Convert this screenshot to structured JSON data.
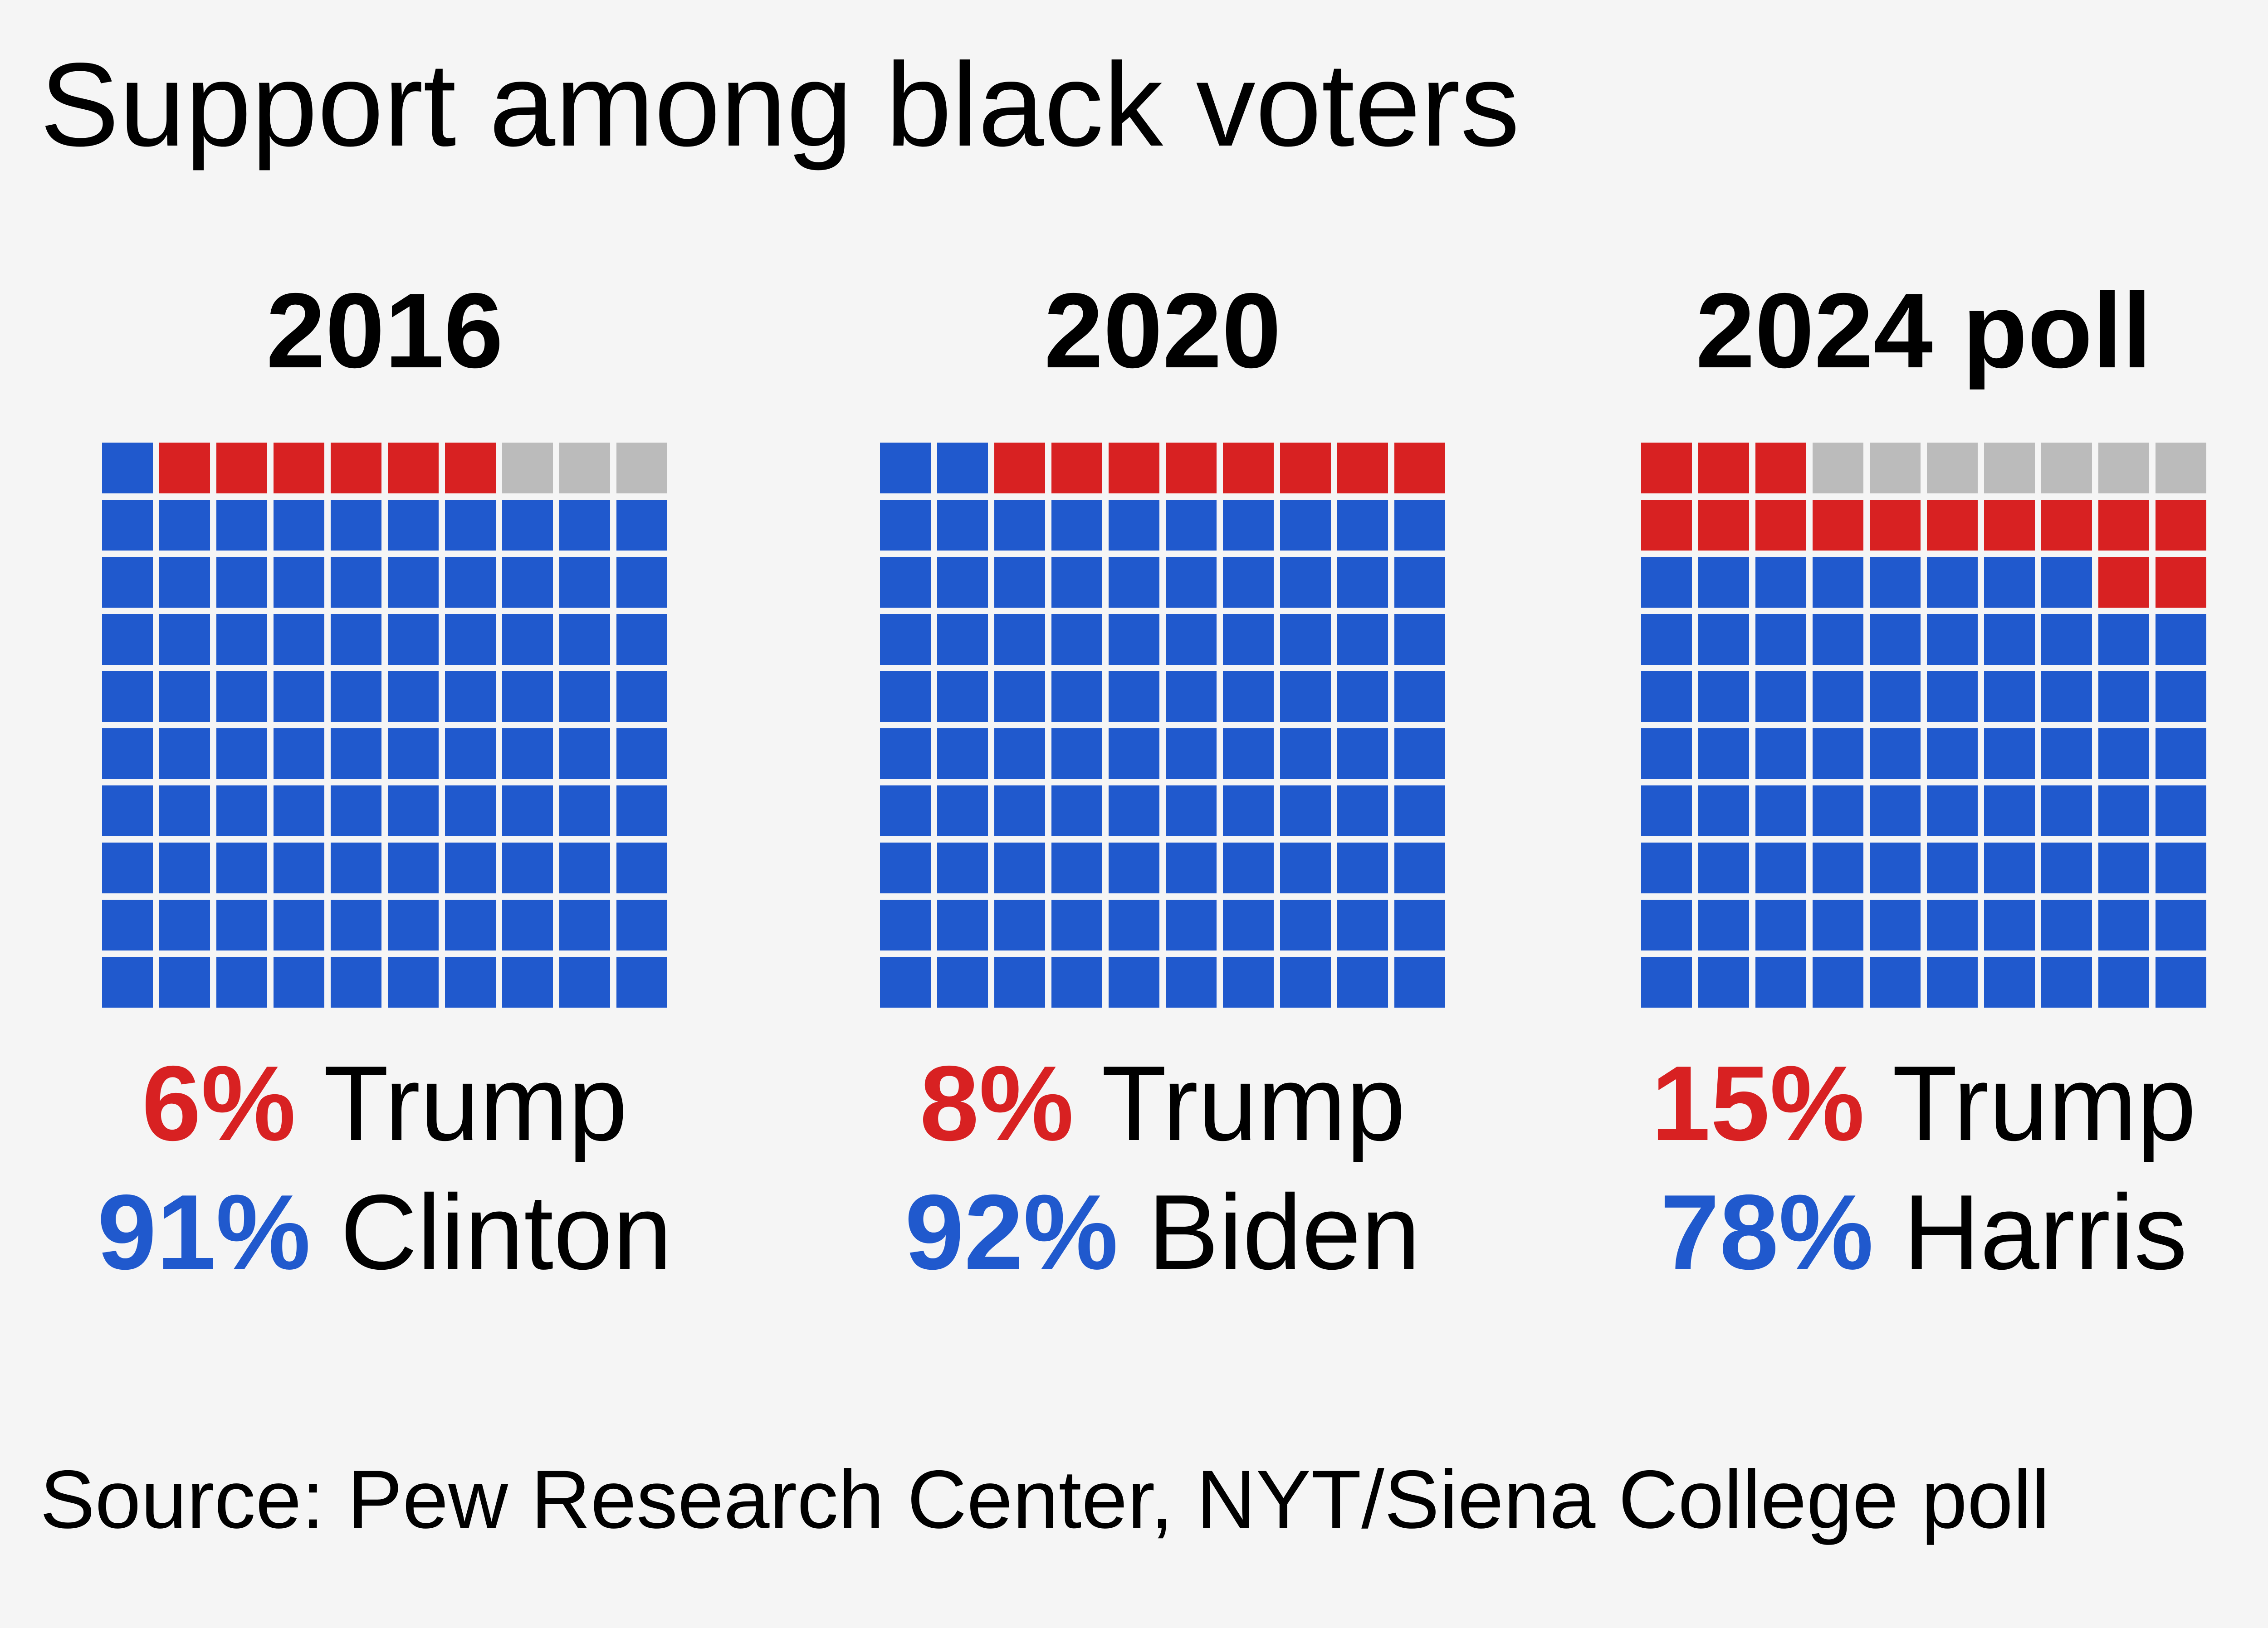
{
  "title": "Support among black voters",
  "source": "Source: Pew Research Center, NYT/Siena College poll",
  "colors": {
    "trump": "#d82122",
    "democrat": "#2059cd",
    "other": "#bbbbbb",
    "background": "#f5f5f5"
  },
  "chart_data": {
    "type": "waffle",
    "title": "Support among black voters",
    "grid": "10x10",
    "panels": [
      {
        "year": "2016",
        "trump_pct_label": "6%",
        "trump_name": "Trump",
        "dem_pct_label": "91%",
        "dem_name": "Clinton",
        "trump": 6,
        "democrat": 91,
        "other": 3
      },
      {
        "year": "2020",
        "trump_pct_label": "8%",
        "trump_name": "Trump",
        "dem_pct_label": "92%",
        "dem_name": "Biden",
        "trump": 8,
        "democrat": 92,
        "other": 0
      },
      {
        "year": "2024 poll",
        "trump_pct_label": "15%",
        "trump_name": "Trump",
        "dem_pct_label": "78%",
        "dem_name": "Harris",
        "trump": 15,
        "democrat": 78,
        "other": 7
      }
    ]
  }
}
